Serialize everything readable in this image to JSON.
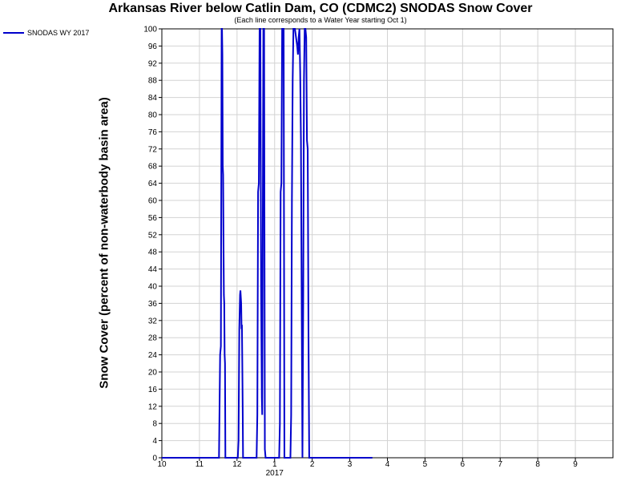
{
  "chart_data": {
    "type": "line",
    "title": "Arkansas River below Catlin Dam, CO (CDMC2) SNODAS Snow Cover",
    "subtitle": "(Each line corresponds to a Water Year starting Oct 1)",
    "ylabel": "Snow Cover (percent of non-waterbody basin area)",
    "xlabel": "",
    "ylim": [
      0,
      100
    ],
    "xlim": [
      0,
      12
    ],
    "y_ticks": [
      0,
      4,
      8,
      12,
      16,
      20,
      24,
      28,
      32,
      36,
      40,
      44,
      48,
      52,
      56,
      60,
      64,
      68,
      72,
      76,
      80,
      84,
      88,
      92,
      96,
      100
    ],
    "x_ticks": [
      {
        "pos": 0,
        "label": "10"
      },
      {
        "pos": 1,
        "label": "11"
      },
      {
        "pos": 2,
        "label": "12"
      },
      {
        "pos": 3,
        "label": "1"
      },
      {
        "pos": 4,
        "label": "2"
      },
      {
        "pos": 5,
        "label": "3"
      },
      {
        "pos": 6,
        "label": "4"
      },
      {
        "pos": 7,
        "label": "5"
      },
      {
        "pos": 8,
        "label": "6"
      },
      {
        "pos": 9,
        "label": "7"
      },
      {
        "pos": 10,
        "label": "8"
      },
      {
        "pos": 11,
        "label": "9"
      }
    ],
    "x_sublabel": {
      "pos": 3,
      "label": "2017"
    },
    "grid": true,
    "legend_position": "top-left",
    "series": [
      {
        "name": "SNODAS WY 2017",
        "color": "#0000cc",
        "points": [
          [
            0,
            0
          ],
          [
            1.52,
            0
          ],
          [
            1.55,
            24
          ],
          [
            1.57,
            26
          ],
          [
            1.58,
            60
          ],
          [
            1.59,
            100
          ],
          [
            1.6,
            100
          ],
          [
            1.61,
            94
          ],
          [
            1.62,
            68
          ],
          [
            1.63,
            66
          ],
          [
            1.64,
            50
          ],
          [
            1.65,
            38
          ],
          [
            1.66,
            36
          ],
          [
            1.67,
            24
          ],
          [
            1.68,
            22
          ],
          [
            1.69,
            0
          ],
          [
            2.02,
            0
          ],
          [
            2.04,
            4
          ],
          [
            2.06,
            30
          ],
          [
            2.08,
            38
          ],
          [
            2.09,
            39
          ],
          [
            2.11,
            36
          ],
          [
            2.12,
            30
          ],
          [
            2.13,
            31
          ],
          [
            2.14,
            22
          ],
          [
            2.15,
            12
          ],
          [
            2.16,
            0
          ],
          [
            2.52,
            0
          ],
          [
            2.54,
            10
          ],
          [
            2.56,
            62
          ],
          [
            2.58,
            64
          ],
          [
            2.6,
            100
          ],
          [
            2.62,
            100
          ],
          [
            2.64,
            40
          ],
          [
            2.66,
            14
          ],
          [
            2.67,
            10
          ],
          [
            2.68,
            40
          ],
          [
            2.7,
            100
          ],
          [
            2.72,
            100
          ],
          [
            2.74,
            2
          ],
          [
            2.76,
            0
          ],
          [
            3.12,
            0
          ],
          [
            3.14,
            8
          ],
          [
            3.16,
            62
          ],
          [
            3.18,
            64
          ],
          [
            3.2,
            100
          ],
          [
            3.24,
            100
          ],
          [
            3.26,
            0
          ],
          [
            3.42,
            0
          ],
          [
            3.44,
            10
          ],
          [
            3.46,
            60
          ],
          [
            3.48,
            88
          ],
          [
            3.5,
            100
          ],
          [
            3.54,
            100
          ],
          [
            3.57,
            98
          ],
          [
            3.6,
            96
          ],
          [
            3.62,
            94
          ],
          [
            3.64,
            98
          ],
          [
            3.66,
            100
          ],
          [
            3.68,
            90
          ],
          [
            3.7,
            74
          ],
          [
            3.72,
            36
          ],
          [
            3.74,
            0
          ],
          [
            3.76,
            36
          ],
          [
            3.78,
            88
          ],
          [
            3.8,
            100
          ],
          [
            3.82,
            100
          ],
          [
            3.84,
            98
          ],
          [
            3.86,
            74
          ],
          [
            3.88,
            72
          ],
          [
            3.9,
            30
          ],
          [
            3.92,
            0
          ],
          [
            5.6,
            0
          ]
        ]
      }
    ]
  }
}
